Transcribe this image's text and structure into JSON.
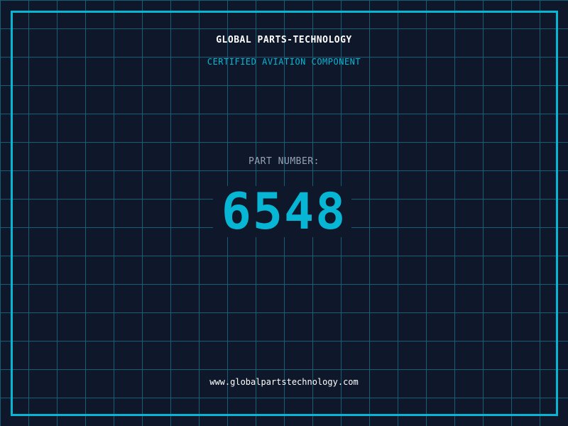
{
  "header": {
    "title": "GLOBAL PARTS-TECHNOLOGY",
    "subtitle": "CERTIFIED AVIATION COMPONENT"
  },
  "part": {
    "label": "PART NUMBER:",
    "number": "6548"
  },
  "footer": {
    "url": "www.globalpartstechnology.com"
  },
  "colors": {
    "background": "#0f172a",
    "accent": "#06b6d4",
    "grid": "#155e75",
    "label": "#94a3b8"
  }
}
